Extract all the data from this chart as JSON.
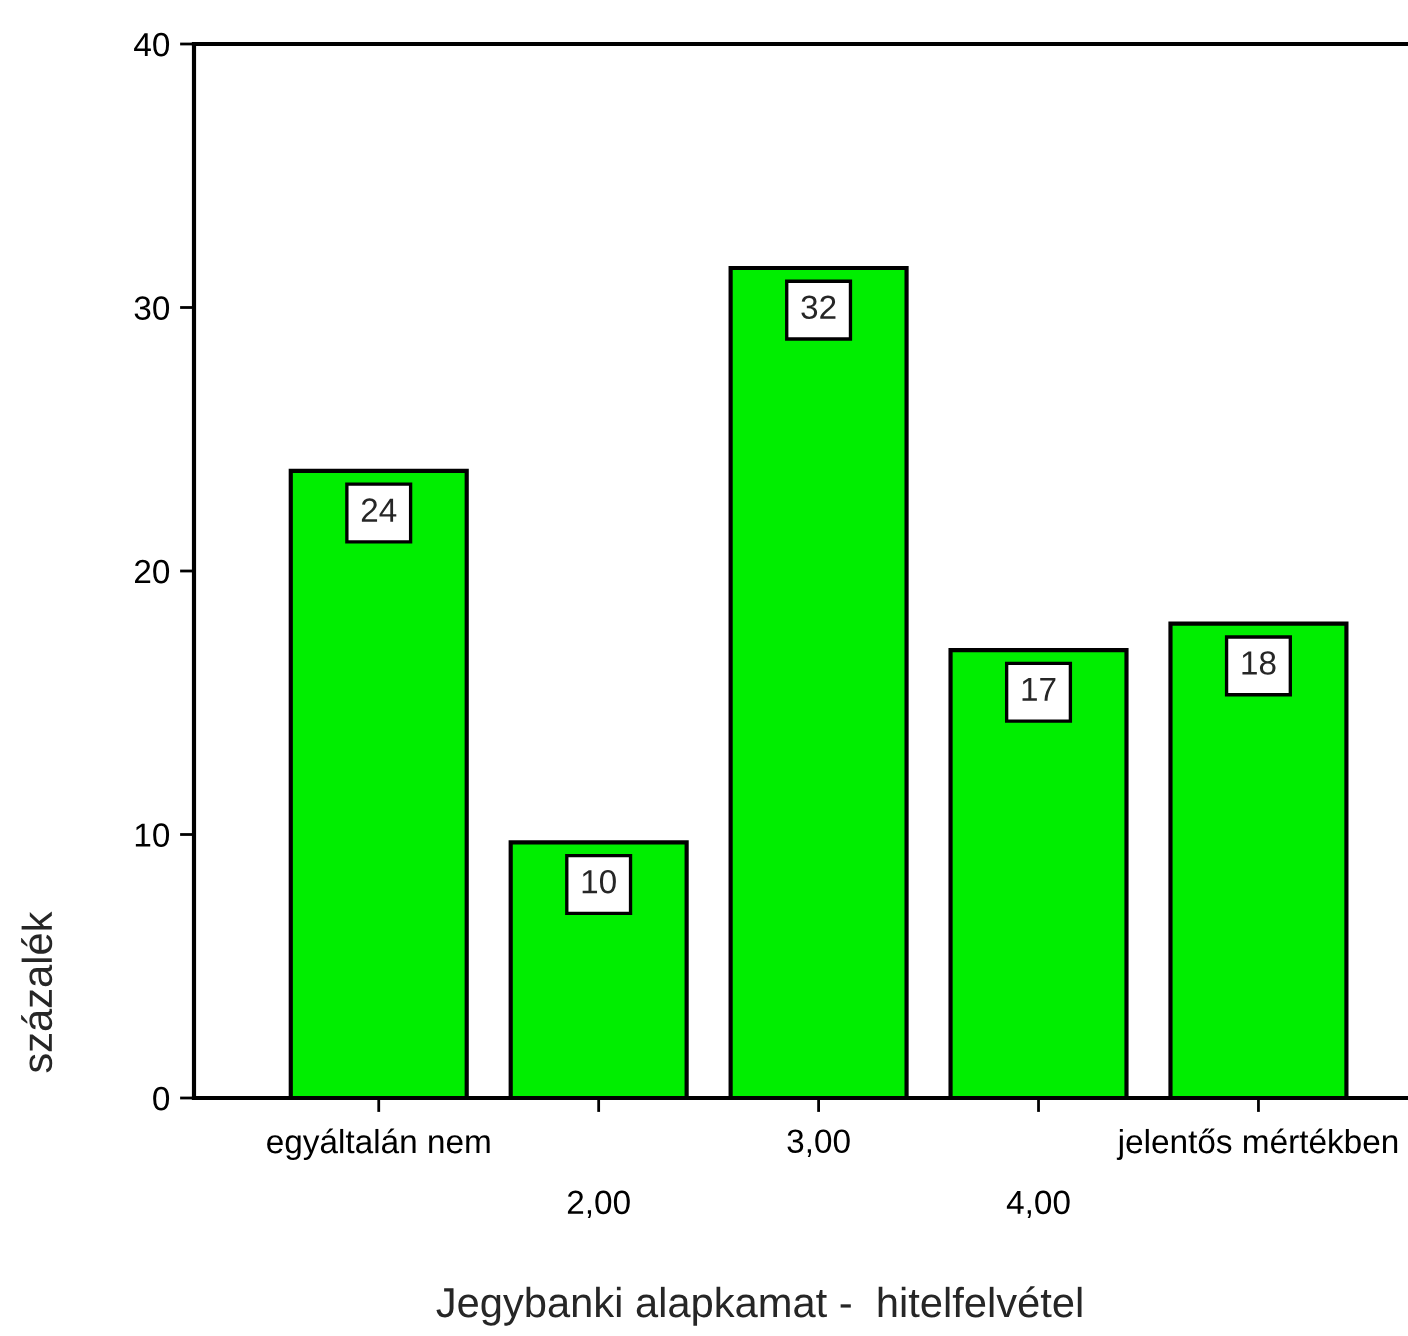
{
  "chart_data": {
    "type": "bar",
    "xlabel": "Jegybanki alapkamat -  hitelfelvétel",
    "ylabel": "százalék",
    "categories": [
      "egyáltalán nem",
      "2,00",
      "3,00",
      "4,00",
      "jelentős mértékben"
    ],
    "values": [
      23.8,
      9.7,
      31.5,
      17.0,
      18.0
    ],
    "value_labels": [
      "24",
      "10",
      "32",
      "17",
      "18"
    ],
    "color": "#00ee00",
    "ylim": [
      0,
      40
    ],
    "yticks": [
      0,
      10,
      20,
      30,
      40
    ],
    "grid": false
  }
}
